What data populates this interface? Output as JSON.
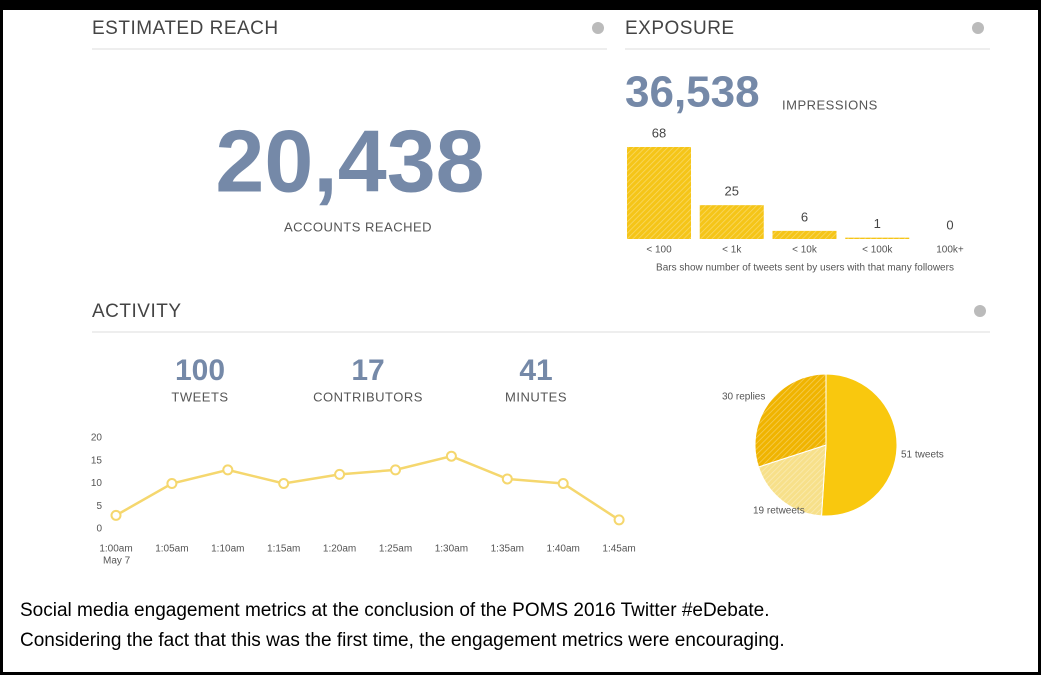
{
  "reach": {
    "title": "ESTIMATED REACH",
    "value": "20,438",
    "label": "ACCOUNTS REACHED"
  },
  "exposure": {
    "title": "EXPOSURE",
    "value": "36,538",
    "label": "IMPRESSIONS"
  },
  "activity": {
    "title": "ACTIVITY",
    "stats": [
      {
        "value": "100",
        "label": "TWEETS"
      },
      {
        "value": "17",
        "label": "CONTRIBUTORS"
      },
      {
        "value": "41",
        "label": "MINUTES"
      }
    ]
  },
  "caption": [
    "Social media engagement metrics at the conclusion of the POMS 2016 Twitter #eDebate.",
    "Considering the fact that this was the first time, the engagement metrics were encouraging."
  ],
  "chart_data": [
    {
      "type": "bar",
      "categories": [
        "< 100",
        "< 1k",
        "< 10k",
        "< 100k",
        "100k+"
      ],
      "values": [
        68,
        25,
        6,
        1,
        0
      ],
      "color": "#f5c518",
      "annotation": "Bars show number of tweets sent by users with that many followers"
    },
    {
      "type": "line",
      "categories": [
        "1:00am",
        "1:05am",
        "1:10am",
        "1:15am",
        "1:20am",
        "1:25am",
        "1:30am",
        "1:35am",
        "1:40am",
        "1:45am"
      ],
      "date": "May 7",
      "values": [
        3,
        10,
        13,
        10,
        12,
        13,
        16,
        11,
        10,
        2
      ],
      "color": "#f5d76e",
      "ylim": [
        0,
        20
      ],
      "yticks": [
        0,
        5,
        10,
        15,
        20
      ]
    },
    {
      "type": "pie",
      "categories": [
        "tweets",
        "retweets",
        "replies"
      ],
      "values": [
        51,
        19,
        30
      ],
      "value_labels": [
        "51 tweets",
        "19 retweets",
        "30 replies"
      ],
      "colors": [
        "#f9c80e",
        "#f7e08a",
        "#f0b400"
      ]
    }
  ]
}
